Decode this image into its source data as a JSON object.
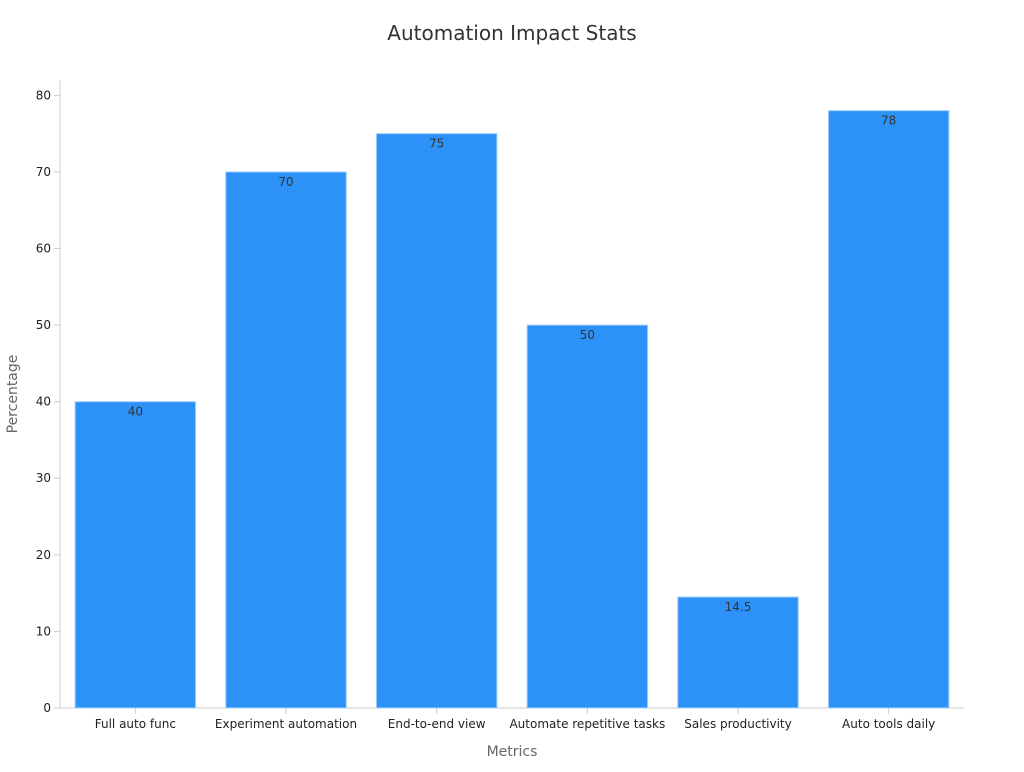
{
  "chart_data": {
    "type": "bar",
    "title": "Automation Impact Stats",
    "xlabel": "Metrics",
    "ylabel": "Percentage",
    "categories": [
      "Full auto func",
      "Experiment automation",
      "End-to-end view",
      "Automate repetitive tasks",
      "Sales productivity",
      "Auto tools daily"
    ],
    "values": [
      40,
      70,
      75,
      50,
      14.5,
      78
    ],
    "ylim": [
      0,
      82
    ],
    "yticks": [
      0,
      10,
      20,
      30,
      40,
      50,
      60,
      70,
      80
    ],
    "grid": false,
    "legend": "none",
    "data_labels": true,
    "colors": {
      "bar": "#2d92f8",
      "bar_edge": "#a9d1fb",
      "axis": "#cccccc",
      "tick_label": "#222222",
      "axis_label": "#666666",
      "title": "#333333",
      "data_label": "#333333"
    }
  }
}
